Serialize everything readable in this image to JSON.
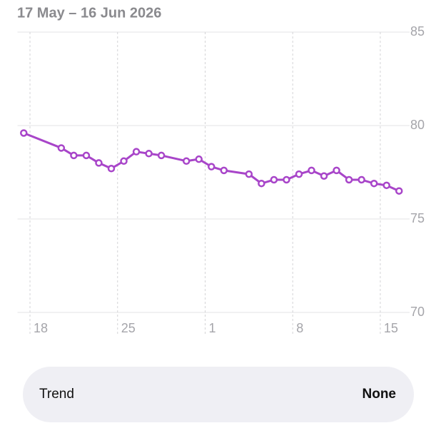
{
  "chart_data": {
    "type": "line",
    "title": "17 May – 16 Jun 2026",
    "x": [
      0.5,
      3.5,
      4.5,
      5.5,
      6.5,
      7.5,
      8.5,
      9.5,
      10.5,
      11.5,
      13.5,
      14.5,
      15.5,
      16.5,
      18.5,
      19.5,
      20.5,
      21.5,
      22.5,
      23.5,
      24.5,
      25.5,
      26.5,
      27.5,
      28.5,
      29.5,
      30.5
    ],
    "series": [
      {
        "color": "#a845c9",
        "values": [
          79.6,
          78.8,
          78.4,
          78.4,
          78.0,
          77.7,
          78.1,
          78.6,
          78.5,
          78.4,
          78.1,
          78.2,
          77.8,
          77.6,
          77.4,
          76.9,
          77.1,
          77.1,
          77.4,
          77.6,
          77.3,
          77.6,
          77.1,
          77.1,
          76.9,
          76.8,
          76.5
        ]
      }
    ],
    "xlim": [
      0,
      31
    ],
    "xticks": [
      {
        "value": 1,
        "label": "18"
      },
      {
        "value": 8,
        "label": "25"
      },
      {
        "value": 15,
        "label": "1"
      },
      {
        "value": 22,
        "label": "8"
      },
      {
        "value": 29,
        "label": "15"
      }
    ],
    "ylim": [
      70,
      85
    ],
    "yticks": [
      70,
      75,
      80,
      85
    ],
    "grid": true
  },
  "trend": {
    "label": "Trend",
    "value": "None"
  }
}
